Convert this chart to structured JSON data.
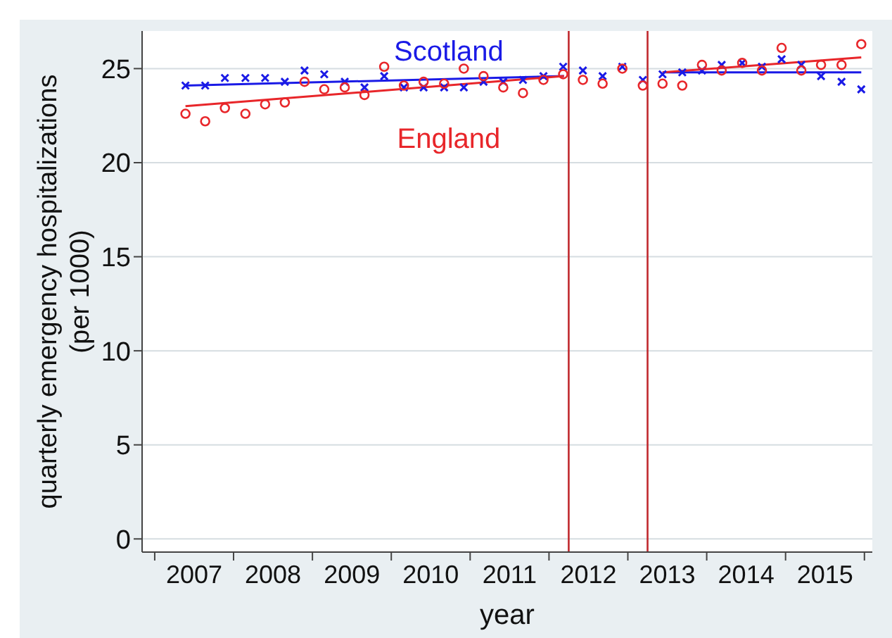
{
  "chart_data": {
    "type": "scatter",
    "xlabel": "year",
    "ylabel": "quarterly emergency hospitalizations\n(per 1000)",
    "xlim": [
      2006.84,
      2016.1
    ],
    "xticks": [
      {
        "value": 2007,
        "label": null
      },
      {
        "value": 2007.5,
        "label": "2007"
      },
      {
        "value": 2008,
        "label": null
      },
      {
        "value": 2008.5,
        "label": "2008"
      },
      {
        "value": 2009,
        "label": null
      },
      {
        "value": 2009.5,
        "label": "2009"
      },
      {
        "value": 2010,
        "label": null
      },
      {
        "value": 2010.5,
        "label": "2010"
      },
      {
        "value": 2011,
        "label": null
      },
      {
        "value": 2011.5,
        "label": "2011"
      },
      {
        "value": 2012,
        "label": null
      },
      {
        "value": 2012.5,
        "label": "2012"
      },
      {
        "value": 2013,
        "label": null
      },
      {
        "value": 2013.5,
        "label": "2013"
      },
      {
        "value": 2014,
        "label": null
      },
      {
        "value": 2014.5,
        "label": "2014"
      },
      {
        "value": 2015,
        "label": null
      },
      {
        "value": 2015.5,
        "label": "2015"
      },
      {
        "value": 2016,
        "label": null
      }
    ],
    "ylim": [
      -0.7,
      27
    ],
    "yticks": [
      0,
      5,
      10,
      15,
      20,
      25
    ],
    "grid": "y",
    "x": [
      2007.39,
      2007.64,
      2007.89,
      2008.15,
      2008.4,
      2008.65,
      2008.9,
      2009.15,
      2009.41,
      2009.66,
      2009.91,
      2010.16,
      2010.41,
      2010.67,
      2010.92,
      2011.17,
      2011.42,
      2011.67,
      2011.93,
      2012.18,
      2012.43,
      2012.68,
      2012.93,
      2013.19,
      2013.44,
      2013.69,
      2013.94,
      2014.19,
      2014.45,
      2014.7,
      2014.95,
      2015.2,
      2015.45,
      2015.71,
      2015.96
    ],
    "series": [
      {
        "name": "Scotland",
        "marker": "cross",
        "color": "#1a1ae6",
        "values": [
          24.1,
          24.1,
          24.5,
          24.5,
          24.5,
          24.3,
          24.9,
          24.7,
          24.3,
          24.0,
          24.6,
          24.0,
          24.0,
          24.0,
          24.0,
          24.3,
          24.3,
          24.4,
          24.6,
          25.1,
          24.9,
          24.6,
          25.1,
          24.4,
          24.7,
          24.8,
          24.9,
          25.2,
          25.3,
          25.1,
          25.5,
          25.2,
          24.6,
          24.3,
          23.9
        ]
      },
      {
        "name": "England",
        "marker": "circle",
        "color": "#e8262a",
        "values": [
          22.6,
          22.2,
          22.9,
          22.6,
          23.1,
          23.2,
          24.3,
          23.9,
          24.0,
          23.6,
          25.1,
          24.1,
          24.3,
          24.2,
          25.0,
          24.6,
          24.0,
          23.7,
          24.4,
          24.7,
          24.4,
          24.2,
          25.0,
          24.1,
          24.2,
          24.1,
          25.2,
          24.9,
          25.3,
          24.9,
          26.1,
          24.9,
          25.2,
          25.2,
          26.3
        ]
      },
      {
        "type": "line",
        "color": "#1a1ae6",
        "x": [
          2007.39,
          2012.19
        ],
        "values": [
          24.1,
          24.6
        ]
      },
      {
        "type": "line",
        "color": "#e8262a",
        "x": [
          2007.39,
          2012.19
        ],
        "values": [
          23.0,
          24.6
        ]
      },
      {
        "type": "line",
        "color": "#1a1ae6",
        "x": [
          2013.44,
          2015.96
        ],
        "values": [
          24.8,
          24.8
        ]
      },
      {
        "type": "line",
        "color": "#e8262a",
        "x": [
          2013.44,
          2015.96
        ],
        "values": [
          24.8,
          25.6
        ]
      }
    ],
    "ref_lines": [
      {
        "axis": "x",
        "value": 2012.25,
        "color": "#c0282d"
      },
      {
        "axis": "x",
        "value": 2013.25,
        "color": "#c0282d"
      }
    ]
  }
}
